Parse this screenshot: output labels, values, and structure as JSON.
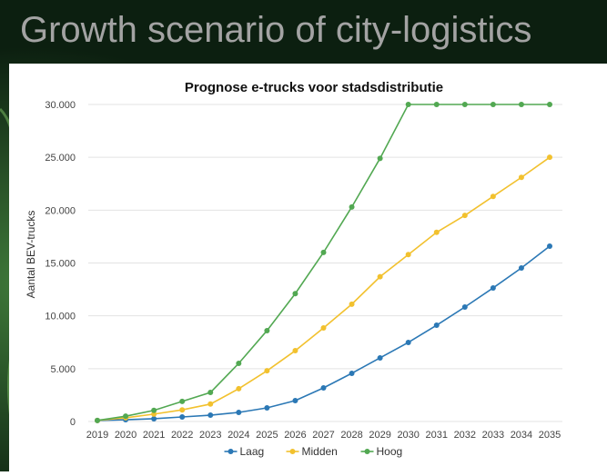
{
  "slide_title": "Growth scenario of city-logistics",
  "chart_data": {
    "type": "line",
    "title": "Prognose e-trucks voor stadsdistributie",
    "y_label": "Aantal BEV-trucks",
    "categories": [
      "2019",
      "2020",
      "2021",
      "2022",
      "2023",
      "2024",
      "2025",
      "2026",
      "2027",
      "2028",
      "2029",
      "2030",
      "2031",
      "2032",
      "2033",
      "2034",
      "2035"
    ],
    "series": [
      {
        "name": "Laag",
        "color": "#2b78b5",
        "values": [
          100,
          170,
          260,
          430,
          600,
          860,
          1290,
          1980,
          3180,
          4560,
          6020,
          7480,
          9110,
          10830,
          12640,
          14530,
          16590
        ]
      },
      {
        "name": "Midden",
        "color": "#f2c12e",
        "values": [
          100,
          350,
          700,
          1100,
          1650,
          3100,
          4800,
          6700,
          8850,
          11100,
          13700,
          15800,
          17900,
          19500,
          21300,
          23100,
          25000
        ]
      },
      {
        "name": "Hoog",
        "color": "#52a852",
        "values": [
          100,
          500,
          1050,
          1900,
          2750,
          5500,
          8600,
          12100,
          16000,
          20300,
          24900,
          30000,
          30000,
          30000,
          30000,
          30000,
          30000
        ]
      }
    ],
    "ylim": [
      0,
      30000
    ],
    "yticks": [
      0,
      {
        "value": 5000,
        "label": "5.000"
      },
      {
        "value": 10000,
        "label": "10.000"
      },
      {
        "value": 15000,
        "label": "15.000"
      },
      {
        "value": 20000,
        "label": "20.000"
      },
      {
        "value": 25000,
        "label": "25.000"
      },
      {
        "value": 30000,
        "label": "30.000"
      }
    ],
    "grid": true,
    "legend": "bottom"
  }
}
